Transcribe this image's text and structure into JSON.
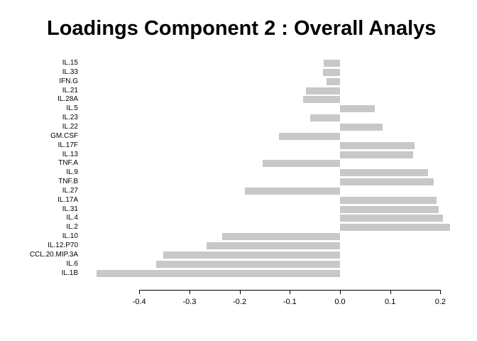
{
  "chart_data": {
    "type": "bar",
    "orientation": "horizontal",
    "title": "Loadings Component 2 : Overall Analys",
    "categories": [
      "IL.15",
      "IL.33",
      "IFN.G",
      "IL.21",
      "IL.28A",
      "IL.5",
      "IL.23",
      "IL.22",
      "GM.CSF",
      "IL.17F",
      "IL.13",
      "TNF.A",
      "IL.9",
      "TNF.B",
      "IL.27",
      "IL.17A",
      "IL.31",
      "IL.4",
      "IL.2",
      "IL.10",
      "IL.12.P70",
      "CCL.20.MIP.3A",
      "IL.6",
      "IL.1B"
    ],
    "values": [
      -0.033,
      -0.034,
      -0.027,
      -0.068,
      -0.073,
      0.069,
      -0.06,
      0.085,
      -0.121,
      0.149,
      0.146,
      -0.154,
      0.176,
      0.187,
      -0.19,
      0.193,
      0.197,
      0.205,
      0.219,
      -0.235,
      -0.266,
      -0.352,
      -0.366,
      -0.485
    ],
    "xlabel": "",
    "ylabel": "",
    "xlim": [
      -0.4,
      0.2
    ],
    "x_ticks": [
      -0.4,
      -0.3,
      -0.2,
      -0.1,
      0.0,
      0.1,
      0.2
    ],
    "x_tick_labels": [
      "-0.4",
      "-0.3",
      "-0.2",
      "-0.1",
      "0.0",
      "0.1",
      "0.2"
    ],
    "bar_color": "#c8c8c8",
    "grid": false,
    "legend": false
  }
}
